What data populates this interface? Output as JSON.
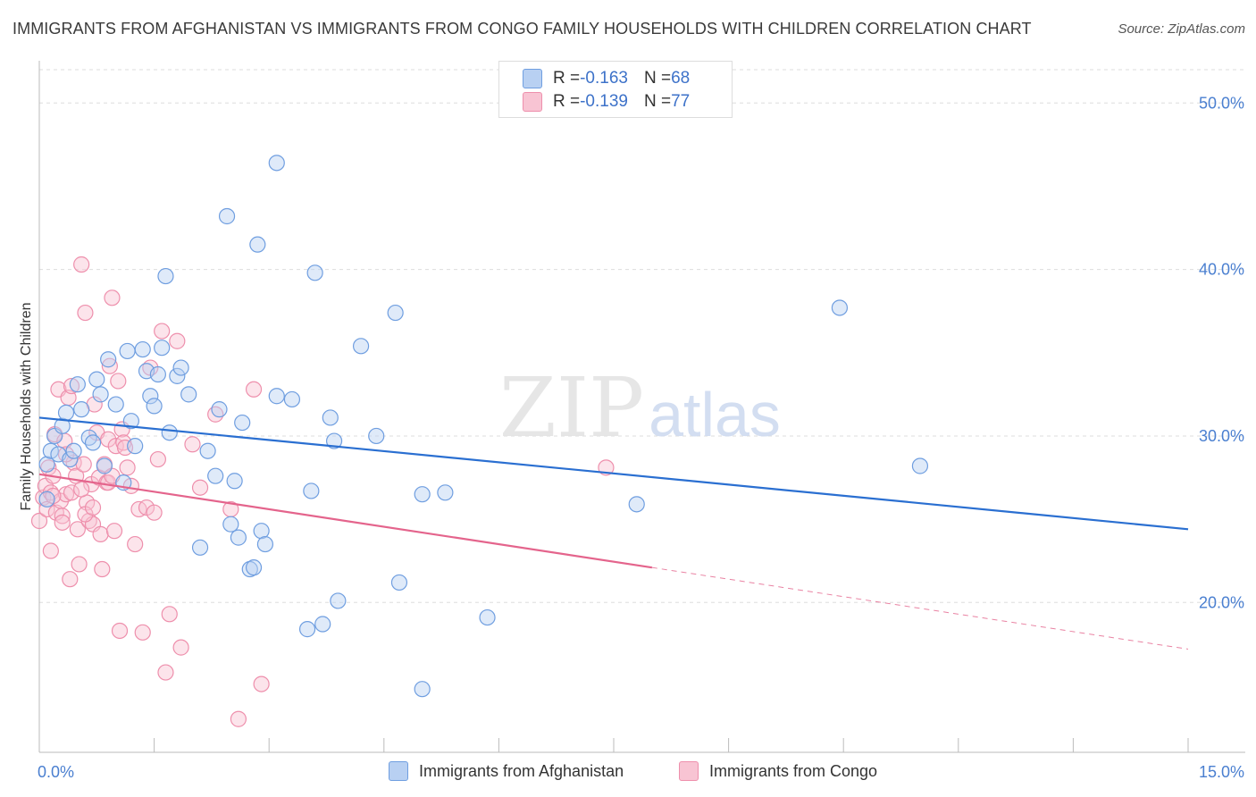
{
  "header": {
    "title": "IMMIGRANTS FROM AFGHANISTAN VS IMMIGRANTS FROM CONGO FAMILY HOUSEHOLDS WITH CHILDREN CORRELATION CHART",
    "source": "Source: ZipAtlas.com"
  },
  "watermark": {
    "zip": "ZIP",
    "atlas": "atlas"
  },
  "legend_top": {
    "afghanistan": {
      "r_label": "R = ",
      "r_value": "-0.163",
      "n_label": "N = ",
      "n_value": "68"
    },
    "congo": {
      "r_label": "R = ",
      "r_value": "-0.139",
      "n_label": "N = ",
      "n_value": "77"
    }
  },
  "legend_bottom": {
    "afghanistan": "Immigrants from Afghanistan",
    "congo": "Immigrants from Congo"
  },
  "colors": {
    "afghanistan_fill": "#b8d0f2",
    "afghanistan_stroke": "#6f9ee0",
    "afghanistan_line": "#2a6fd1",
    "congo_fill": "#f8c4d3",
    "congo_stroke": "#ee8fac",
    "congo_line": "#e4648c",
    "tick_text": "#4a7fd0",
    "grid": "#dddddd"
  },
  "chart_data": {
    "type": "scatter",
    "ylabel": "Family Households with Children",
    "xlabel": "",
    "xlim": [
      0,
      15
    ],
    "ylim": [
      11,
      52
    ],
    "x_tick_labels": [
      {
        "value": 0,
        "label": "0.0%"
      },
      {
        "value": 15,
        "label": "15.0%"
      }
    ],
    "y_tick_labels": [
      {
        "value": 20,
        "label": "20.0%"
      },
      {
        "value": 30,
        "label": "30.0%"
      },
      {
        "value": 40,
        "label": "40.0%"
      },
      {
        "value": 50,
        "label": "50.0%"
      }
    ],
    "x_minor_ticks": [
      1.5,
      3.0,
      4.5,
      6.0,
      7.5,
      9.0,
      10.5,
      12.0,
      13.5
    ],
    "grid": "horizontal dashed",
    "legend_position": "top-center",
    "series": [
      {
        "name": "Immigrants from Afghanistan",
        "trend": {
          "x0": 0,
          "y0": 31.1,
          "x1": 15,
          "y1": 24.4
        },
        "points": [
          [
            0.1,
            26.2
          ],
          [
            0.1,
            28.3
          ],
          [
            0.15,
            29.1
          ],
          [
            0.2,
            30.0
          ],
          [
            0.25,
            28.9
          ],
          [
            0.3,
            30.6
          ],
          [
            0.35,
            31.4
          ],
          [
            0.4,
            28.6
          ],
          [
            0.45,
            29.1
          ],
          [
            0.5,
            33.1
          ],
          [
            0.55,
            31.6
          ],
          [
            0.65,
            29.9
          ],
          [
            0.7,
            29.6
          ],
          [
            0.75,
            33.4
          ],
          [
            0.8,
            32.5
          ],
          [
            0.85,
            28.2
          ],
          [
            0.9,
            34.6
          ],
          [
            1.0,
            31.9
          ],
          [
            1.1,
            27.2
          ],
          [
            1.15,
            35.1
          ],
          [
            1.2,
            30.9
          ],
          [
            1.25,
            29.4
          ],
          [
            1.35,
            35.2
          ],
          [
            1.4,
            33.9
          ],
          [
            1.45,
            32.4
          ],
          [
            1.5,
            31.8
          ],
          [
            1.55,
            33.7
          ],
          [
            1.6,
            35.3
          ],
          [
            1.65,
            39.6
          ],
          [
            1.7,
            30.2
          ],
          [
            1.8,
            33.6
          ],
          [
            1.85,
            34.1
          ],
          [
            1.95,
            32.5
          ],
          [
            2.1,
            23.3
          ],
          [
            2.2,
            29.1
          ],
          [
            2.3,
            27.6
          ],
          [
            2.35,
            31.6
          ],
          [
            2.45,
            43.2
          ],
          [
            2.5,
            24.7
          ],
          [
            2.55,
            27.3
          ],
          [
            2.6,
            23.9
          ],
          [
            2.65,
            30.8
          ],
          [
            2.75,
            22.0
          ],
          [
            2.8,
            22.1
          ],
          [
            2.85,
            41.5
          ],
          [
            2.9,
            24.3
          ],
          [
            2.95,
            23.5
          ],
          [
            3.1,
            46.4
          ],
          [
            3.1,
            32.4
          ],
          [
            3.3,
            32.2
          ],
          [
            3.5,
            18.4
          ],
          [
            3.55,
            26.7
          ],
          [
            3.6,
            39.8
          ],
          [
            3.7,
            18.7
          ],
          [
            3.8,
            31.1
          ],
          [
            3.85,
            29.7
          ],
          [
            3.9,
            20.1
          ],
          [
            4.2,
            35.4
          ],
          [
            4.4,
            30.0
          ],
          [
            4.65,
            37.4
          ],
          [
            4.7,
            21.2
          ],
          [
            5.0,
            26.5
          ],
          [
            5.3,
            26.6
          ],
          [
            5.85,
            19.1
          ],
          [
            5.0,
            14.8
          ],
          [
            7.8,
            25.9
          ],
          [
            10.45,
            37.7
          ],
          [
            11.5,
            28.2
          ]
        ]
      },
      {
        "name": "Immigrants from Congo",
        "trend": {
          "x0": 0,
          "y0": 27.7,
          "x1": 8.0,
          "y1": 22.1,
          "dash_to": {
            "x": 15,
            "y": 17.2
          }
        },
        "points": [
          [
            0.0,
            24.9
          ],
          [
            0.05,
            26.3
          ],
          [
            0.08,
            27.0
          ],
          [
            0.1,
            25.6
          ],
          [
            0.12,
            28.1
          ],
          [
            0.15,
            26.6
          ],
          [
            0.18,
            27.6
          ],
          [
            0.2,
            30.1
          ],
          [
            0.22,
            25.4
          ],
          [
            0.25,
            32.8
          ],
          [
            0.28,
            26.1
          ],
          [
            0.3,
            25.2
          ],
          [
            0.33,
            29.7
          ],
          [
            0.35,
            26.5
          ],
          [
            0.38,
            32.3
          ],
          [
            0.4,
            21.4
          ],
          [
            0.42,
            33.0
          ],
          [
            0.45,
            28.4
          ],
          [
            0.48,
            27.6
          ],
          [
            0.5,
            24.4
          ],
          [
            0.52,
            22.3
          ],
          [
            0.55,
            40.3
          ],
          [
            0.58,
            28.3
          ],
          [
            0.6,
            37.4
          ],
          [
            0.62,
            26.0
          ],
          [
            0.65,
            24.9
          ],
          [
            0.68,
            27.1
          ],
          [
            0.7,
            24.7
          ],
          [
            0.72,
            31.9
          ],
          [
            0.75,
            30.2
          ],
          [
            0.78,
            27.5
          ],
          [
            0.8,
            24.1
          ],
          [
            0.82,
            22.0
          ],
          [
            0.85,
            28.3
          ],
          [
            0.88,
            27.2
          ],
          [
            0.9,
            29.8
          ],
          [
            0.92,
            34.2
          ],
          [
            0.95,
            38.3
          ],
          [
            0.98,
            24.3
          ],
          [
            1.0,
            29.4
          ],
          [
            1.03,
            33.3
          ],
          [
            1.05,
            18.3
          ],
          [
            1.08,
            30.4
          ],
          [
            1.1,
            29.6
          ],
          [
            1.12,
            29.3
          ],
          [
            1.15,
            28.1
          ],
          [
            1.2,
            27.0
          ],
          [
            1.25,
            23.5
          ],
          [
            1.3,
            25.6
          ],
          [
            1.35,
            18.2
          ],
          [
            1.4,
            25.7
          ],
          [
            1.45,
            34.1
          ],
          [
            1.5,
            25.4
          ],
          [
            1.55,
            28.6
          ],
          [
            1.6,
            36.3
          ],
          [
            1.65,
            15.8
          ],
          [
            1.7,
            19.3
          ],
          [
            1.8,
            35.7
          ],
          [
            1.85,
            17.3
          ],
          [
            2.0,
            29.5
          ],
          [
            2.1,
            26.9
          ],
          [
            2.3,
            31.3
          ],
          [
            2.5,
            25.6
          ],
          [
            2.6,
            13.0
          ],
          [
            2.8,
            32.8
          ],
          [
            2.9,
            15.1
          ],
          [
            0.6,
            25.3
          ],
          [
            0.35,
            28.9
          ],
          [
            0.18,
            26.4
          ],
          [
            0.42,
            26.6
          ],
          [
            0.9,
            27.2
          ],
          [
            0.55,
            26.8
          ],
          [
            0.3,
            24.8
          ],
          [
            0.7,
            25.7
          ],
          [
            0.15,
            23.1
          ],
          [
            0.95,
            27.6
          ],
          [
            7.4,
            28.1
          ]
        ]
      }
    ]
  }
}
